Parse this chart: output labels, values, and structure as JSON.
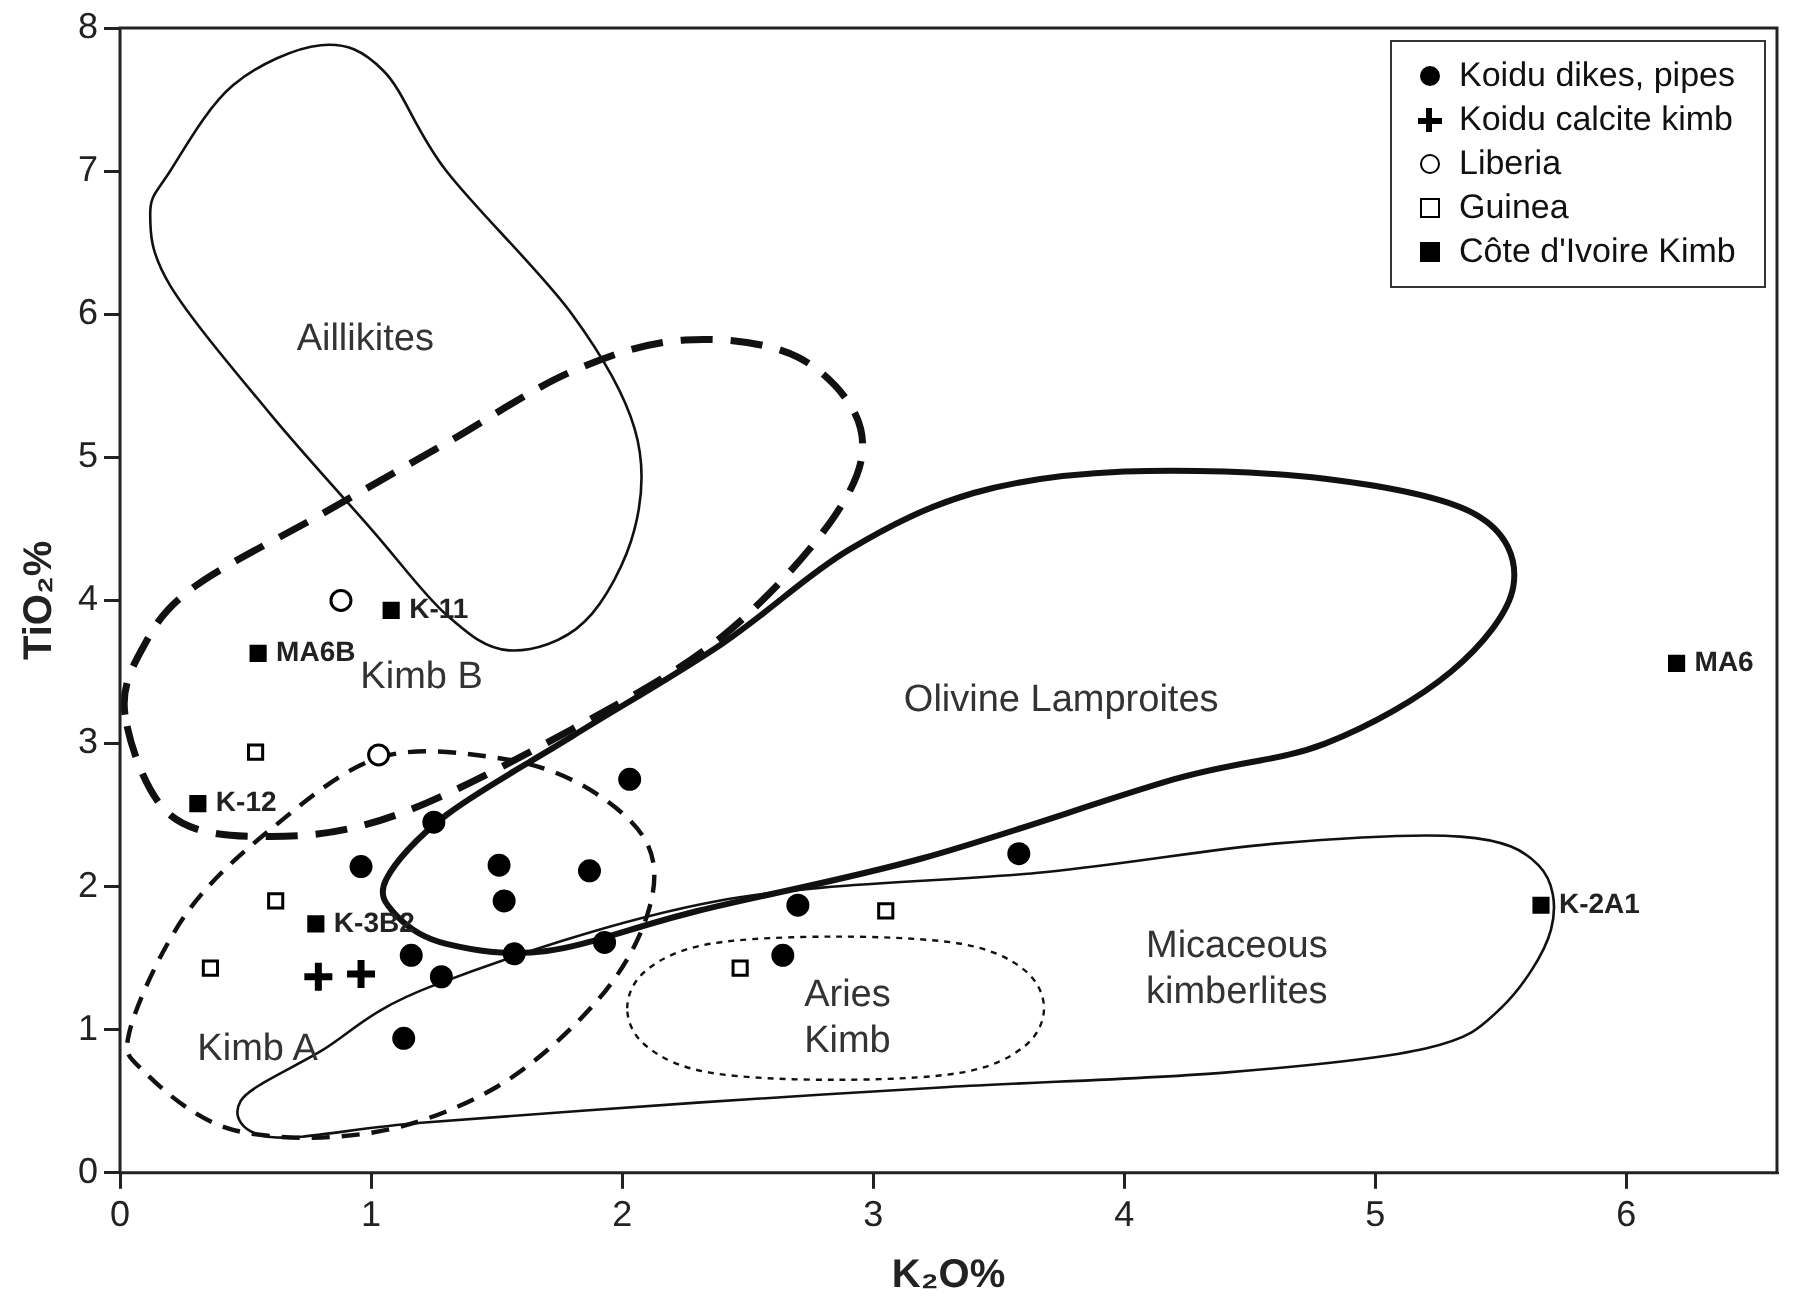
{
  "chart_data": {
    "type": "scatter",
    "xlabel": "K₂O%",
    "ylabel": "TiO₂%",
    "xlim": [
      0,
      6.6
    ],
    "xticks": [
      0,
      1,
      2,
      3,
      4,
      5,
      6
    ],
    "ylim": [
      0,
      8
    ],
    "yticks": [
      0,
      1,
      2,
      3,
      4,
      5,
      6,
      7,
      8
    ],
    "grid": false,
    "legend": "top right",
    "series": [
      {
        "name": "Koidu dikes, pipes",
        "color": "#000000",
        "marker": "circle",
        "x": [
          1.25,
          2.03,
          0.96,
          1.51,
          1.87,
          1.53,
          1.16,
          1.28,
          1.57,
          1.93,
          1.13,
          3.58,
          2.7,
          2.64
        ],
        "values": [
          2.45,
          2.75,
          2.14,
          2.15,
          2.11,
          1.9,
          1.52,
          1.37,
          1.53,
          1.61,
          0.94,
          2.23,
          1.87,
          1.52
        ]
      },
      {
        "name": "Koidu calcite kimb",
        "color": "#000000",
        "marker": "cross",
        "x": [
          0.79,
          0.96
        ],
        "values": [
          1.37,
          1.39
        ]
      },
      {
        "name": "Liberia",
        "color": "#ffffff",
        "marker": "circle",
        "x": [
          0.88,
          1.03
        ],
        "values": [
          4.0,
          2.92
        ]
      },
      {
        "name": "Guinea",
        "color": "#ffffff",
        "marker": "square",
        "x": [
          0.54,
          0.62,
          0.36,
          3.05,
          2.47
        ],
        "values": [
          2.94,
          1.9,
          1.43,
          1.83,
          1.43
        ]
      },
      {
        "name": "Côte d'Ivoire Kimb",
        "color": "#000000",
        "marker": "square",
        "x": [
          0.55,
          1.08,
          0.31,
          0.78,
          5.66,
          6.2
        ],
        "values": [
          3.63,
          3.93,
          2.58,
          1.74,
          1.87,
          3.56
        ]
      }
    ],
    "annotations": [
      "Aillikites",
      "Kimb B",
      "Kimb A",
      "Olivine Lamproites",
      "Micaceous\nkimberlites",
      "Aries\nKimb",
      {
        "text": "MA6B",
        "x": 0.55,
        "y": 3.63
      },
      {
        "text": "K-11",
        "x": 1.08,
        "y": 3.93
      },
      {
        "text": "K-12",
        "x": 0.31,
        "y": 2.58
      },
      {
        "text": "K-3B2",
        "x": 0.78,
        "y": 1.74
      },
      {
        "text": "K-2A1",
        "x": 5.66,
        "y": 1.87
      },
      {
        "text": "MA6",
        "x": 6.2,
        "y": 3.56
      }
    ]
  }
}
